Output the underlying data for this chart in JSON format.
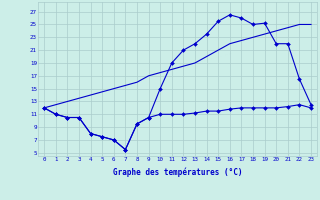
{
  "bg_color": "#cceee8",
  "grid_color": "#aacccc",
  "line_color": "#0000cc",
  "xlabel": "Graphe des températures (°C)",
  "ylabel_ticks": [
    5,
    7,
    9,
    11,
    13,
    15,
    17,
    19,
    21,
    23,
    25,
    27
  ],
  "xlabel_ticks": [
    0,
    1,
    2,
    3,
    4,
    5,
    6,
    7,
    8,
    9,
    10,
    11,
    12,
    13,
    14,
    15,
    16,
    17,
    18,
    19,
    20,
    21,
    22,
    23
  ],
  "xlim": [
    -0.5,
    23.5
  ],
  "ylim": [
    4.5,
    28.5
  ],
  "max_temps": [
    12,
    11,
    10.5,
    10.5,
    8.0,
    7.5,
    7.0,
    5.5,
    9.5,
    10.5,
    15.0,
    19.0,
    21.0,
    22.0,
    23.5,
    25.5,
    26.5,
    26.0,
    25.0,
    25.2,
    22.0,
    22.0,
    16.5,
    12.5
  ],
  "min_temps": [
    12,
    11,
    10.5,
    10.5,
    8.0,
    7.5,
    7.0,
    5.5,
    9.5,
    10.5,
    11.0,
    11.0,
    11.0,
    11.2,
    11.5,
    11.5,
    11.8,
    12.0,
    12.0,
    12.0,
    12.0,
    12.2,
    12.5,
    12.0
  ],
  "avg_temps": [
    12,
    12.5,
    13.0,
    13.5,
    14.0,
    14.5,
    15.0,
    15.5,
    16.0,
    17.0,
    17.5,
    18.0,
    18.5,
    19.0,
    20.0,
    21.0,
    22.0,
    22.5,
    23.0,
    23.5,
    24.0,
    24.5,
    25.0,
    25.0
  ],
  "x_hours": [
    0,
    1,
    2,
    3,
    4,
    5,
    6,
    7,
    8,
    9,
    10,
    11,
    12,
    13,
    14,
    15,
    16,
    17,
    18,
    19,
    20,
    21,
    22,
    23
  ],
  "marker_size": 2.0,
  "line_width": 0.8,
  "tick_fontsize": 4.2,
  "xlabel_fontsize": 5.5
}
